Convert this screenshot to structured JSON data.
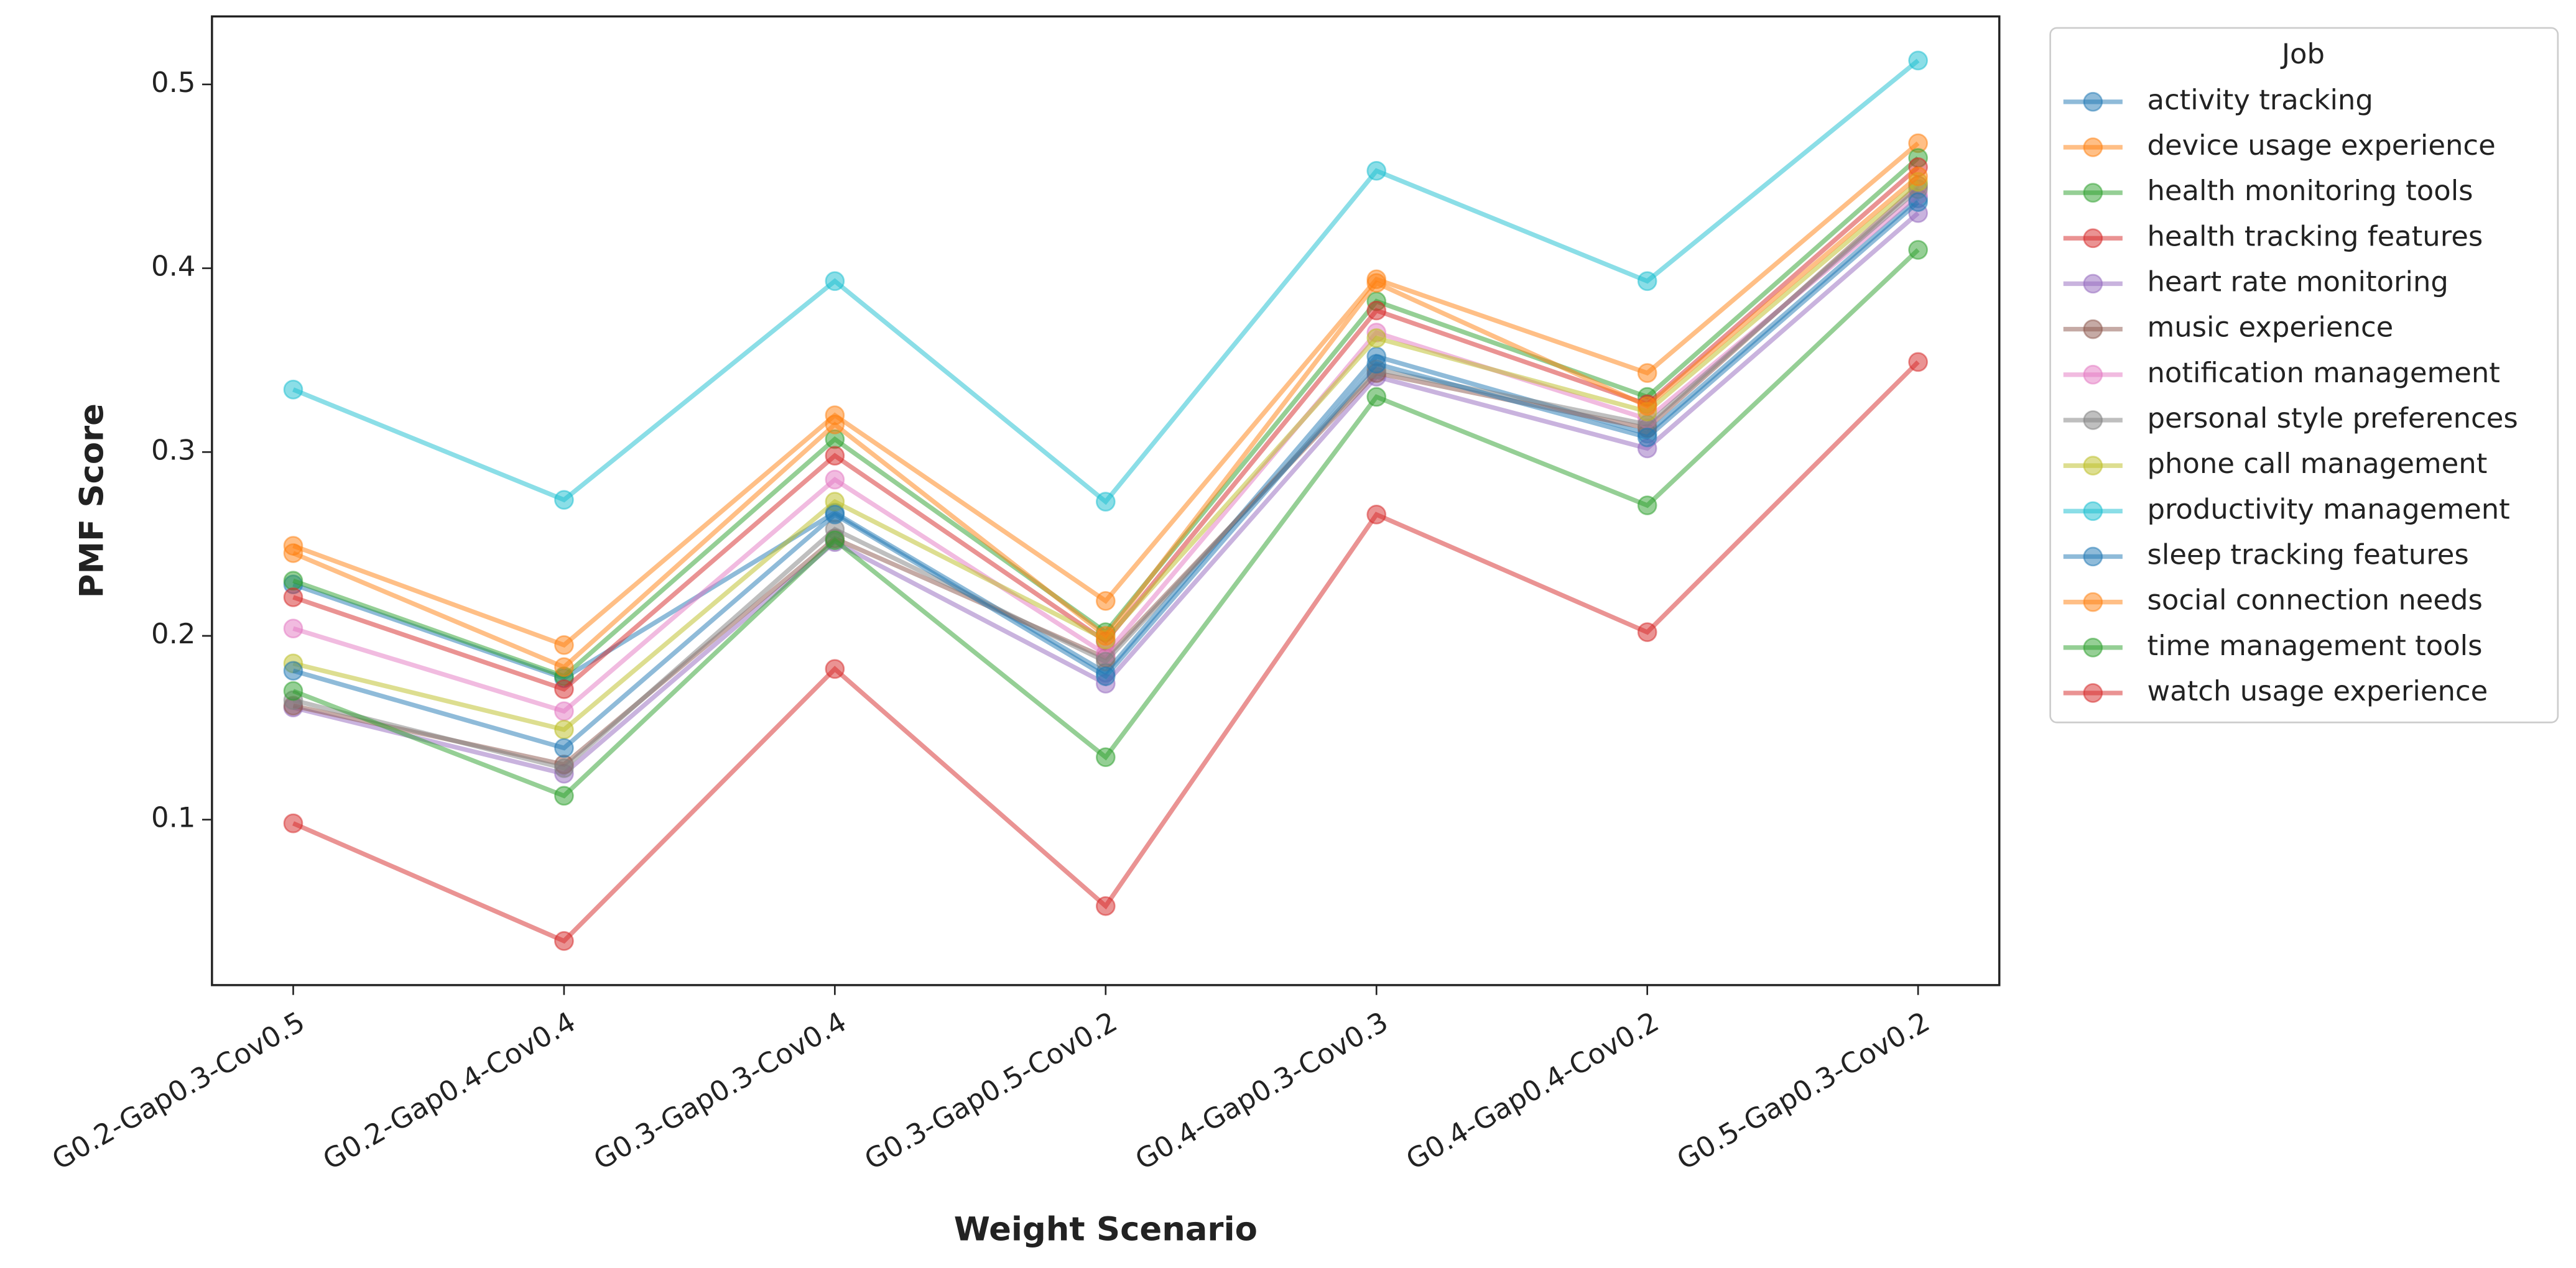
{
  "chart_data": {
    "type": "line",
    "x_label": "Weight Scenario",
    "y_label": "PMF Score",
    "legend_title": "Job",
    "legend": "outside-right",
    "categories": [
      "G0.2-Gap0.3-Cov0.5",
      "G0.2-Gap0.4-Cov0.4",
      "G0.3-Gap0.3-Cov0.4",
      "G0.3-Gap0.5-Cov0.2",
      "G0.4-Gap0.3-Cov0.3",
      "G0.4-Gap0.4-Cov0.2",
      "G0.5-Gap0.3-Cov0.2"
    ],
    "ylim": [
      0.01,
      0.537
    ],
    "yticks": [
      0.1,
      0.2,
      0.3,
      0.4,
      0.5
    ],
    "grid": false,
    "series": [
      {
        "name": "activity tracking",
        "color": "#1f77b4",
        "values": [
          0.228,
          0.177,
          0.267,
          0.18,
          0.352,
          0.31,
          0.438
        ]
      },
      {
        "name": "device usage experience",
        "color": "#ff7f0e",
        "values": [
          0.249,
          0.195,
          0.32,
          0.219,
          0.394,
          0.343,
          0.468
        ]
      },
      {
        "name": "health monitoring tools",
        "color": "#2ca02c",
        "values": [
          0.23,
          0.178,
          0.307,
          0.202,
          0.382,
          0.33,
          0.46
        ]
      },
      {
        "name": "health tracking features",
        "color": "#d62728",
        "values": [
          0.221,
          0.171,
          0.298,
          0.197,
          0.377,
          0.326,
          0.455
        ]
      },
      {
        "name": "heart rate monitoring",
        "color": "#9467bd",
        "values": [
          0.161,
          0.125,
          0.251,
          0.174,
          0.341,
          0.302,
          0.43
        ]
      },
      {
        "name": "music experience",
        "color": "#8c564b",
        "values": [
          0.162,
          0.13,
          0.253,
          0.188,
          0.343,
          0.313,
          0.445
        ]
      },
      {
        "name": "notification management",
        "color": "#e377c2",
        "values": [
          0.204,
          0.159,
          0.285,
          0.19,
          0.365,
          0.318,
          0.44
        ]
      },
      {
        "name": "personal style preferences",
        "color": "#7f7f7f",
        "values": [
          0.165,
          0.128,
          0.258,
          0.186,
          0.345,
          0.315,
          0.443
        ]
      },
      {
        "name": "phone call management",
        "color": "#bcbd22",
        "values": [
          0.185,
          0.149,
          0.273,
          0.198,
          0.362,
          0.322,
          0.447
        ]
      },
      {
        "name": "productivity management",
        "color": "#17becf",
        "values": [
          0.334,
          0.274,
          0.393,
          0.273,
          0.453,
          0.393,
          0.513
        ]
      },
      {
        "name": "sleep tracking features",
        "color": "#1f77b4",
        "values": [
          0.181,
          0.139,
          0.266,
          0.178,
          0.348,
          0.308,
          0.436
        ]
      },
      {
        "name": "social connection needs",
        "color": "#ff7f0e",
        "values": [
          0.245,
          0.183,
          0.315,
          0.2,
          0.392,
          0.325,
          0.45
        ]
      },
      {
        "name": "time management tools",
        "color": "#2ca02c",
        "values": [
          0.17,
          0.113,
          0.252,
          0.134,
          0.33,
          0.271,
          0.41
        ]
      },
      {
        "name": "watch usage experience",
        "color": "#d62728",
        "values": [
          0.098,
          0.034,
          0.182,
          0.053,
          0.266,
          0.202,
          0.349
        ]
      }
    ]
  }
}
